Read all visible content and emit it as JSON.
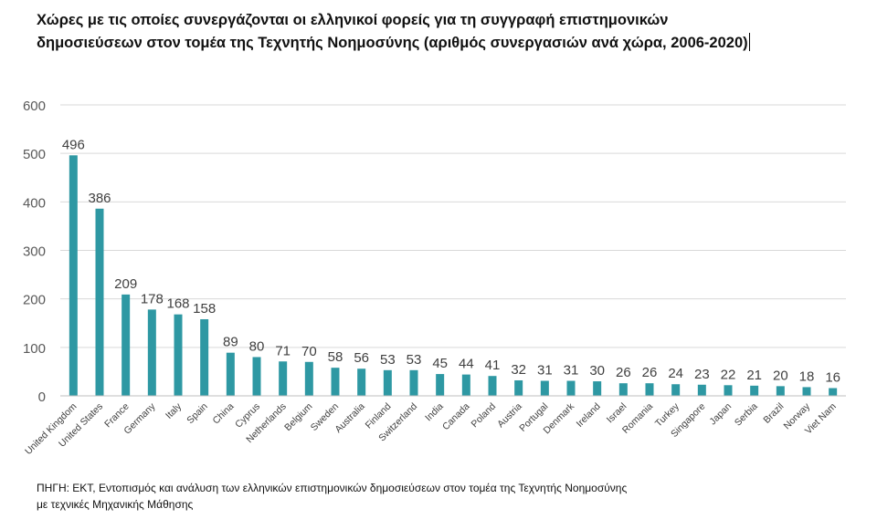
{
  "title": {
    "line1": "Χώρες με τις οποίες συνεργάζονται οι ελληνικοί φορείς για τη συγγραφή επιστημονικών",
    "line2": "δημοσιεύσεων στον τομέα της Τεχνητής Νοημοσύνης (αριθμός συνεργασιών ανά χώρα, 2006-2020)"
  },
  "source": {
    "line1": "ΠΗΓΗ: ΕΚΤ, Εντοπισμός και ανάλυση των ελληνικών επιστημονικών δημοσιεύσεων στον τομέα της Τεχνητής Νοημοσύνης",
    "line2": "με τεχνικές Μηχανικής Μάθησης"
  },
  "chart_data": {
    "type": "bar",
    "categories": [
      "United Kingdom",
      "United States",
      "France",
      "Germany",
      "Italy",
      "Spain",
      "China",
      "Cyprus",
      "Netherlands",
      "Belgium",
      "Sweden",
      "Australia",
      "Finland",
      "Switzerland",
      "India",
      "Canada",
      "Poland",
      "Austria",
      "Portugal",
      "Denmark",
      "Ireland",
      "Israel",
      "Romania",
      "Turkey",
      "Singapore",
      "Japan",
      "Serbia",
      "Brazil",
      "Norway",
      "Viet Nam"
    ],
    "values": [
      496,
      386,
      209,
      178,
      168,
      158,
      89,
      80,
      71,
      70,
      58,
      56,
      53,
      53,
      45,
      44,
      41,
      32,
      31,
      31,
      30,
      26,
      26,
      24,
      23,
      22,
      21,
      20,
      18,
      16
    ],
    "title": "Χώρες με τις οποίες συνεργάζονται οι ελληνικοί φορείς για τη συγγραφή επιστημονικών δημοσιεύσεων στον τομέα της Τεχνητής Νοημοσύνης (αριθμός συνεργασιών ανά χώρα, 2006-2020)",
    "xlabel": "",
    "ylabel": "",
    "ylim": [
      0,
      600
    ],
    "yticks": [
      0,
      100,
      200,
      300,
      400,
      500,
      600
    ],
    "grid": true,
    "legend": "none",
    "bar_color": "#2e98a3",
    "grid_color": "#d9d9d9",
    "axis_color": "#bfbfbf"
  }
}
